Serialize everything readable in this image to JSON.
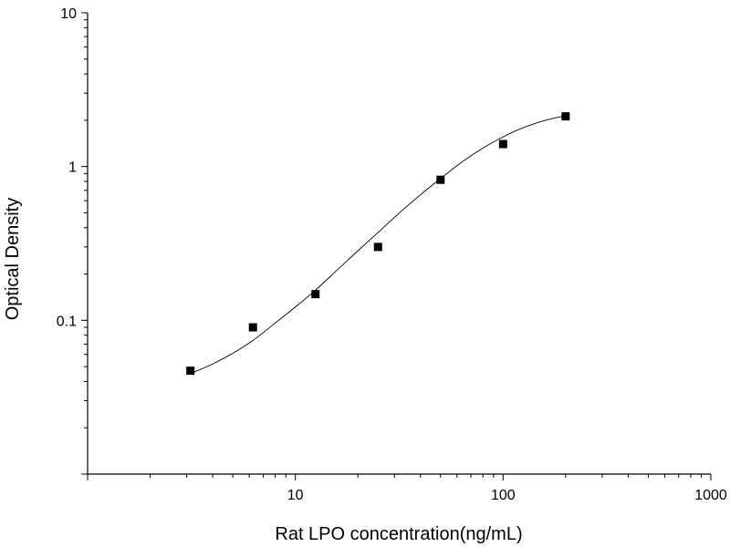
{
  "chart_data": {
    "type": "scatter",
    "title": "",
    "xlabel": "Rat LPO concentration(ng/mL)",
    "ylabel": "Optical Density",
    "x_scale": "log",
    "y_scale": "log",
    "xlim": [
      1,
      1000
    ],
    "ylim": [
      0.01,
      10
    ],
    "x_ticks": [
      10,
      100,
      1000
    ],
    "x_tick_labels": [
      "10",
      "100",
      "1000"
    ],
    "y_ticks": [
      0.1,
      1,
      10
    ],
    "y_tick_labels": [
      "0.1",
      "1",
      "10"
    ],
    "grid": false,
    "legend": "none",
    "series": [
      {
        "marker": "square",
        "color": "#000000",
        "x": [
          3.125,
          6.25,
          12.5,
          25,
          50,
          100,
          200
        ],
        "y": [
          0.047,
          0.09,
          0.148,
          0.3,
          0.82,
          1.4,
          2.12
        ]
      }
    ],
    "fit_curve": {
      "style": "line",
      "color": "#000000",
      "x": [
        3.125,
        4,
        5,
        6.25,
        8,
        10,
        12.5,
        16,
        20,
        25,
        32,
        40,
        50,
        64,
        80,
        100,
        125,
        160,
        200
      ],
      "y": [
        0.045,
        0.052,
        0.061,
        0.074,
        0.096,
        0.122,
        0.157,
        0.214,
        0.283,
        0.372,
        0.505,
        0.655,
        0.835,
        1.08,
        1.32,
        1.56,
        1.79,
        2.0,
        2.14
      ]
    }
  }
}
